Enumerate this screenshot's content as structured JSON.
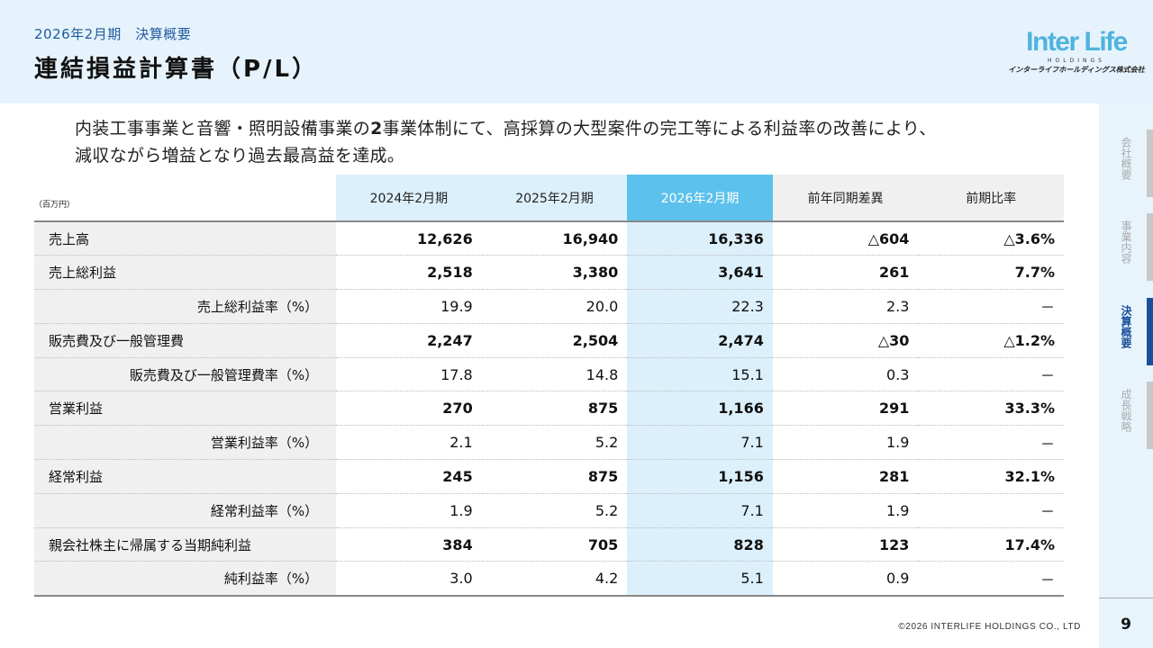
{
  "header": {
    "subtitle": "2026年2月期　決算概要",
    "title": "連結損益計算書（P/L）"
  },
  "logo": {
    "main": "Inter Life",
    "sub": "HOLDINGS",
    "kana": "インターライフホールディングス株式会社"
  },
  "lead": {
    "line1_pre": "内装工事事業と音響・照明設備事業の",
    "line1_bold": "2",
    "line1_post": "事業体制にて、高採算の大型案件の完工等による利益率の改善により、",
    "line2": "減収ながら増益となり過去最高益を達成。"
  },
  "table": {
    "unit": "（百万円）",
    "columns": [
      "2024年2月期",
      "2025年2月期",
      "2026年2月期",
      "前年同期差異",
      "前期比率"
    ],
    "rows": [
      {
        "label": "売上高",
        "sub": false,
        "values": [
          "12,626",
          "16,940",
          "16,336",
          "△604",
          "△3.6%"
        ]
      },
      {
        "label": "売上総利益",
        "sub": false,
        "values": [
          "2,518",
          "3,380",
          "3,641",
          "261",
          "7.7%"
        ]
      },
      {
        "label": "売上総利益率（%）",
        "sub": true,
        "values": [
          "19.9",
          "20.0",
          "22.3",
          "2.3",
          "－"
        ]
      },
      {
        "label": "販売費及び一般管理費",
        "sub": false,
        "values": [
          "2,247",
          "2,504",
          "2,474",
          "△30",
          "△1.2%"
        ]
      },
      {
        "label": "販売費及び一般管理費率（%）",
        "sub": true,
        "values": [
          "17.8",
          "14.8",
          "15.1",
          "0.3",
          "－"
        ]
      },
      {
        "label": "営業利益",
        "sub": false,
        "values": [
          "270",
          "875",
          "1,166",
          "291",
          "33.3%"
        ]
      },
      {
        "label": "営業利益率（%）",
        "sub": true,
        "values": [
          "2.1",
          "5.2",
          "7.1",
          "1.9",
          "－"
        ]
      },
      {
        "label": "経常利益",
        "sub": false,
        "values": [
          "245",
          "875",
          "1,156",
          "281",
          "32.1%"
        ]
      },
      {
        "label": "経常利益率（%）",
        "sub": true,
        "values": [
          "1.9",
          "5.2",
          "7.1",
          "1.9",
          "－"
        ]
      },
      {
        "label": "親会社株主に帰属する当期純利益",
        "sub": false,
        "values": [
          "384",
          "705",
          "828",
          "123",
          "17.4%"
        ]
      },
      {
        "label": "純利益率（%）",
        "sub": true,
        "values": [
          "3.0",
          "4.2",
          "5.1",
          "0.9",
          "－"
        ]
      }
    ]
  },
  "sidebar": {
    "items": [
      {
        "label": "会社概要",
        "active": false
      },
      {
        "label": "事業内容",
        "active": false
      },
      {
        "label": "決算概要",
        "active": true
      },
      {
        "label": "成長戦略",
        "active": false
      }
    ]
  },
  "footer": {
    "copyright": "©2026 INTERLIFE HOLDINGS CO., LTD",
    "page": "9"
  },
  "colors": {
    "accent": "#1a4f9a",
    "highlight": "#5cc1ec",
    "light": "#dcf0fb",
    "logo": "#4fb3de"
  }
}
